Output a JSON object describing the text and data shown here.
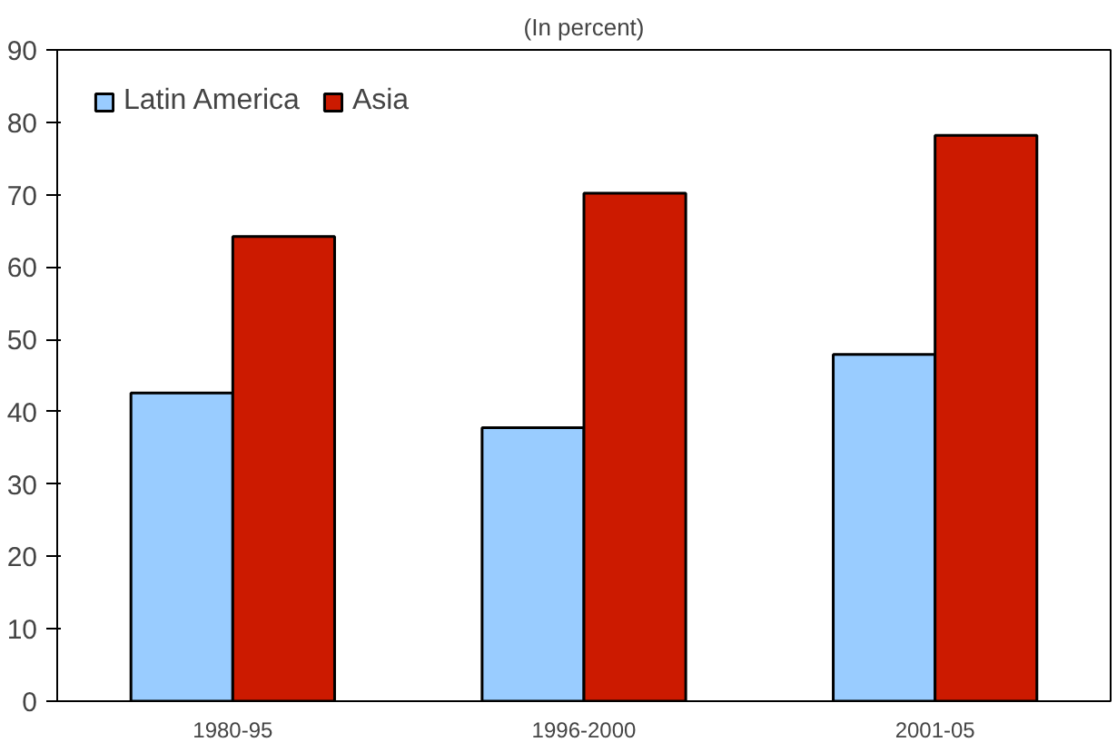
{
  "chart_data": {
    "type": "bar",
    "title": "(In percent)",
    "categories": [
      "1980-95",
      "1996-2000",
      "2001-05"
    ],
    "series": [
      {
        "name": "Latin America",
        "color": "#99ccff",
        "values": [
          42.6,
          37.8,
          47.9
        ]
      },
      {
        "name": "Asia",
        "color": "#cc1a00",
        "values": [
          64.2,
          70.2,
          78.2
        ]
      }
    ],
    "ylim": [
      0,
      90
    ],
    "yticks": [
      0,
      10,
      20,
      30,
      40,
      50,
      60,
      70,
      80,
      90
    ],
    "grid": false,
    "legend": "top left"
  }
}
